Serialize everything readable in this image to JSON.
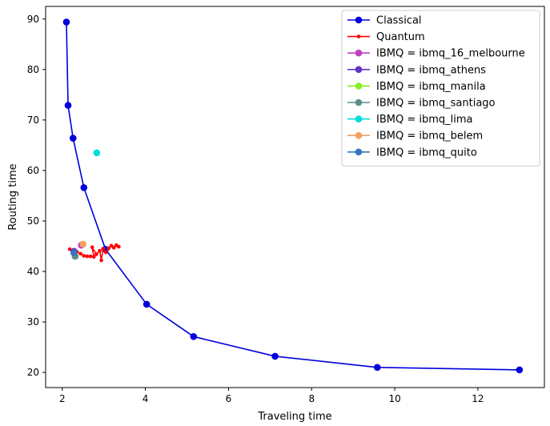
{
  "chart_data": {
    "type": "line",
    "title": "",
    "xlabel": "Traveling time",
    "ylabel": "Routing time",
    "xlim": [
      1.6,
      13.6
    ],
    "ylim": [
      17,
      92.5
    ],
    "xticks": [
      2,
      4,
      6,
      8,
      10,
      12
    ],
    "yticks": [
      20,
      30,
      40,
      50,
      60,
      70,
      80,
      90
    ],
    "grid": false,
    "legend_position": "top-right",
    "series": [
      {
        "name": "Classical",
        "color": "#0000dd",
        "marker": "large-circle",
        "line": true,
        "points": [
          [
            2.1,
            89.4
          ],
          [
            2.14,
            72.9
          ],
          [
            2.26,
            66.4
          ],
          [
            2.52,
            56.6
          ],
          [
            3.04,
            44.4
          ],
          [
            4.03,
            33.5
          ],
          [
            5.16,
            27.1
          ],
          [
            7.12,
            23.2
          ],
          [
            9.58,
            21.0
          ],
          [
            13.0,
            20.5
          ]
        ]
      },
      {
        "name": "Quantum",
        "color": "#ff0000",
        "marker": "small-dot",
        "line": true,
        "points": [
          [
            2.18,
            44.4
          ],
          [
            2.26,
            44.2
          ],
          [
            2.35,
            43.9
          ],
          [
            2.44,
            43.5
          ],
          [
            2.52,
            43.1
          ],
          [
            2.6,
            43.0
          ],
          [
            2.68,
            43.0
          ],
          [
            2.76,
            42.9
          ],
          [
            2.72,
            44.8
          ],
          [
            2.82,
            43.4
          ],
          [
            2.9,
            44.1
          ],
          [
            2.94,
            42.2
          ],
          [
            2.98,
            44.5
          ],
          [
            3.05,
            43.8
          ],
          [
            3.12,
            44.6
          ],
          [
            3.18,
            45.1
          ],
          [
            3.24,
            44.7
          ],
          [
            3.3,
            45.2
          ],
          [
            3.36,
            44.9
          ]
        ]
      },
      {
        "name": "IBMQ = ibmq_16_melbourne",
        "color": "#c040c0",
        "marker": "large-circle",
        "line": false,
        "points": [
          [
            2.46,
            45.2
          ]
        ]
      },
      {
        "name": "IBMQ = ibmq_athens",
        "color": "#6633cc",
        "marker": "large-circle",
        "line": false,
        "points": [
          [
            2.28,
            44.0
          ]
        ]
      },
      {
        "name": "IBMQ = ibmq_manila",
        "color": "#88ee22",
        "marker": "large-circle",
        "line": false,
        "points": []
      },
      {
        "name": "IBMQ = ibmq_santiago",
        "color": "#5e8c8c",
        "marker": "large-circle",
        "line": false,
        "points": [
          [
            2.31,
            43.0
          ]
        ]
      },
      {
        "name": "IBMQ = ibmq_lima",
        "color": "#00dddd",
        "marker": "large-circle",
        "line": false,
        "points": [
          [
            2.83,
            63.5
          ]
        ]
      },
      {
        "name": "IBMQ = ibmq_belem",
        "color": "#f4a060",
        "marker": "large-circle",
        "line": false,
        "points": [
          [
            2.5,
            45.4
          ]
        ]
      },
      {
        "name": "IBMQ = ibmq_quito",
        "color": "#3377bb",
        "marker": "large-circle",
        "line": false,
        "points": [
          [
            2.28,
            43.7
          ]
        ]
      }
    ]
  }
}
